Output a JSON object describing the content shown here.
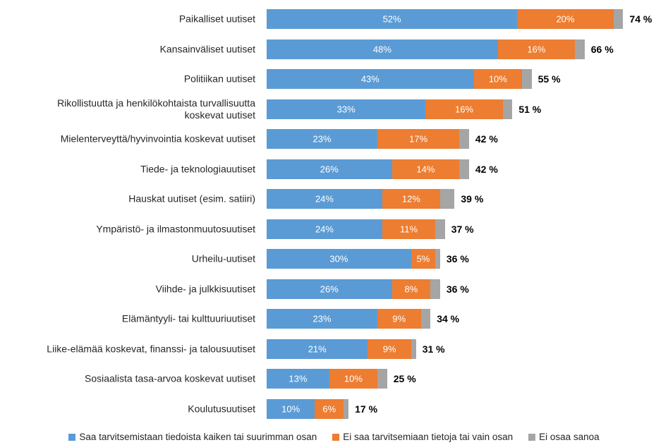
{
  "chart_data": {
    "type": "stacked-bar",
    "orientation": "horizontal",
    "categories": [
      "Paikalliset uutiset",
      "Kansainväliset uutiset",
      "Politiikan uutiset",
      "Rikollistuutta ja henkilökohtaista turvallisuutta\nkoskevat uutiset",
      "Mielenterveyttä/hyvinvointia koskevat uutiset",
      "Tiede- ja teknologiauutiset",
      "Hauskat uutiset (esim. satiiri)",
      "Ympäristö- ja ilmastonmuutosuutiset",
      "Urheilu-uutiset",
      "Viihde- ja julkkisuutiset",
      "Elämäntyyli- tai kulttuuriuutiset",
      "Liike-elämää koskevat, finanssi- ja talousuutiset",
      "Sosiaalista tasa-arvoa koskevat uutiset",
      "Koulutusuutiset"
    ],
    "series": [
      {
        "name": "Saa tarvitsemistaan tiedoista kaiken tai suurimman osan",
        "color": "#5b9bd5",
        "values": [
          52,
          48,
          43,
          33,
          23,
          26,
          24,
          24,
          30,
          26,
          23,
          21,
          13,
          10
        ],
        "value_labels": [
          "52%",
          "48%",
          "43%",
          "33%",
          "23%",
          "26%",
          "24%",
          "24%",
          "30%",
          "26%",
          "23%",
          "21%",
          "13%",
          "10%"
        ]
      },
      {
        "name": "Ei saa tarvitsemiaan tietoja tai vain osan",
        "color": "#ed7d31",
        "values": [
          20,
          16,
          10,
          16,
          17,
          14,
          12,
          11,
          5,
          8,
          9,
          9,
          10,
          6
        ],
        "value_labels": [
          "20%",
          "16%",
          "10%",
          "16%",
          "17%",
          "14%",
          "12%",
          "11%",
          "5%",
          "8%",
          "9%",
          "9%",
          "10%",
          "6%"
        ]
      },
      {
        "name": "Ei osaa sanoa",
        "color": "#a5a5a5",
        "values": [
          2,
          2,
          2,
          2,
          2,
          2,
          3,
          2,
          1,
          2,
          2,
          1,
          2,
          1
        ]
      }
    ],
    "totals": {
      "values": [
        74,
        66,
        55,
        51,
        42,
        42,
        39,
        37,
        36,
        36,
        34,
        31,
        25,
        17
      ],
      "value_labels": [
        "74 %",
        "66 %",
        "55 %",
        "51 %",
        "42 %",
        "42 %",
        "39 %",
        "37 %",
        "36 %",
        "36 %",
        "34 %",
        "31 %",
        "25 %",
        "17 %"
      ]
    },
    "xlim": [
      0,
      80
    ]
  }
}
